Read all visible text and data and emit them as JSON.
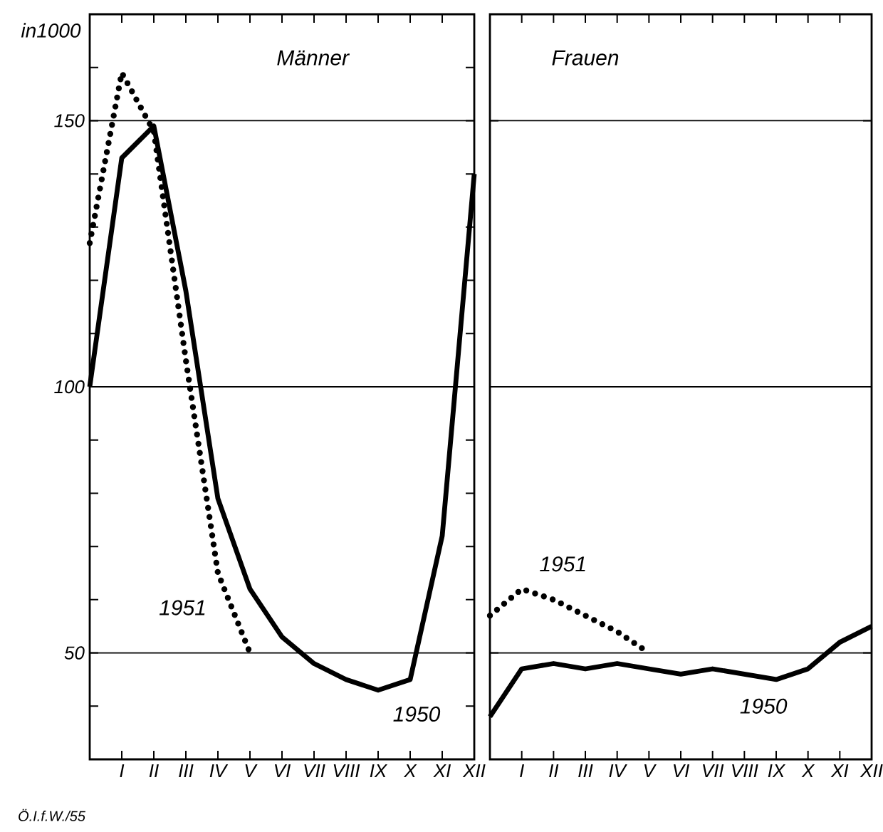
{
  "chart_data": [
    {
      "type": "line",
      "title": "Männer",
      "ylabel": "in1000",
      "categories": [
        null,
        "I",
        "II",
        "III",
        "IV",
        "V",
        "VI",
        "VII",
        "VIII",
        "IX",
        "X",
        "XI",
        "XII"
      ],
      "ylim": [
        30,
        170
      ],
      "yticks": [
        50,
        100,
        150,
        {
          "value": 40,
          "label": null
        },
        {
          "value": 60,
          "label": null
        },
        {
          "value": 70,
          "label": null
        },
        {
          "value": 80,
          "label": null
        },
        {
          "value": 90,
          "label": null
        },
        {
          "value": 110,
          "label": null
        },
        {
          "value": 120,
          "label": null
        },
        {
          "value": 130,
          "label": null
        },
        {
          "value": 140,
          "label": null
        },
        {
          "value": 160,
          "label": null
        }
      ],
      "grid": "y",
      "annotations": [
        "Ö.I.f.W./55"
      ],
      "series": [
        {
          "name": "1950",
          "color": "#000000",
          "line_style": "solid",
          "values": [
            100,
            143,
            149,
            118,
            79,
            62,
            53,
            48,
            45,
            43,
            45,
            72,
            140
          ]
        },
        {
          "name": "1951",
          "color": "#000000",
          "line_style": "dotted",
          "values": [
            127,
            159,
            148,
            105,
            65,
            50,
            null,
            null,
            null,
            null,
            null,
            null,
            null
          ]
        }
      ]
    },
    {
      "type": "line",
      "title": "Frauen",
      "categories": [
        null,
        "I",
        "II",
        "III",
        "IV",
        "V",
        "VI",
        "VII",
        "VIII",
        "IX",
        "X",
        "XI",
        "XII"
      ],
      "ylim": [
        30,
        170
      ],
      "tick_labels": "x",
      "yticks": [
        50,
        100,
        150
      ],
      "grid": "y",
      "series": [
        {
          "name": "1950",
          "color": "#000000",
          "line_style": "solid",
          "values": [
            38,
            47,
            48,
            47,
            48,
            47,
            46,
            47,
            46,
            45,
            47,
            52,
            55
          ]
        },
        {
          "name": "1951",
          "color": "#000000",
          "line_style": "dotted",
          "values": [
            57,
            62,
            60,
            57,
            54,
            50,
            null,
            null,
            null,
            null,
            null,
            null,
            null
          ]
        }
      ]
    }
  ]
}
